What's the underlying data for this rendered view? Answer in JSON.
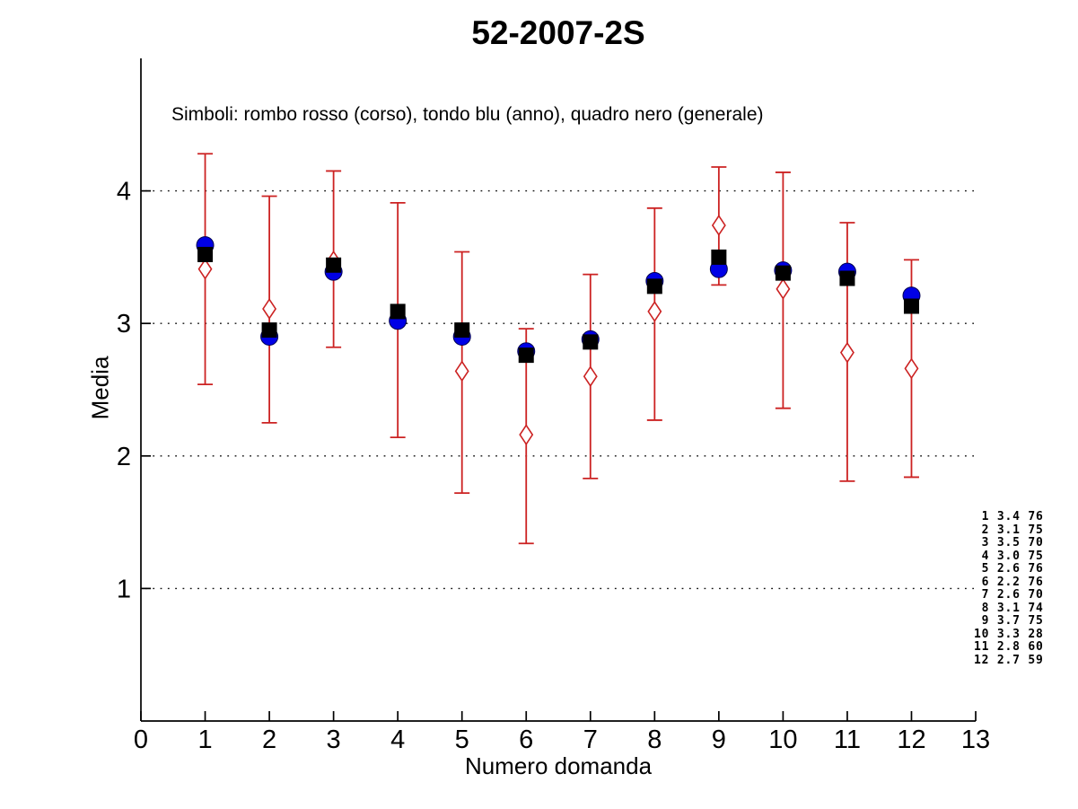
{
  "chart_data": {
    "type": "scatter",
    "title": "52-2007-2S",
    "subtitle": "Simboli: rombo rosso (corso), tondo blu (anno), quadro nero (generale)",
    "xlabel": "Numero domanda",
    "ylabel": "Media",
    "xlim": [
      0,
      13
    ],
    "ylim": [
      0,
      5
    ],
    "xticks": [
      0,
      1,
      2,
      3,
      4,
      5,
      6,
      7,
      8,
      9,
      10,
      11,
      12,
      13
    ],
    "yticks": [
      1,
      2,
      3,
      4
    ],
    "grid": "dotted horizontal lines at each y tick",
    "legend_position": "text line inside plot, top left",
    "x": [
      1,
      2,
      3,
      4,
      5,
      6,
      7,
      8,
      9,
      10,
      11,
      12
    ],
    "series": [
      {
        "name": "corso",
        "legend_label": "rombo rosso (corso)",
        "marker": "open-diamond",
        "color": "#cc2222",
        "values": [
          3.41,
          3.11,
          3.47,
          3.03,
          2.64,
          2.16,
          2.6,
          3.09,
          3.74,
          3.26,
          2.78,
          2.66
        ]
      },
      {
        "name": "anno",
        "legend_label": "tondo blu (anno)",
        "marker": "filled-circle",
        "color": "#0000e6",
        "values": [
          3.59,
          2.9,
          3.39,
          3.02,
          2.9,
          2.79,
          2.88,
          3.32,
          3.41,
          3.4,
          3.39,
          3.21
        ]
      },
      {
        "name": "generale",
        "legend_label": "quadro nero (generale)",
        "marker": "filled-square",
        "color": "#000000",
        "values": [
          3.52,
          2.95,
          3.44,
          3.09,
          2.95,
          2.76,
          2.86,
          3.28,
          3.5,
          3.38,
          3.34,
          3.13
        ]
      }
    ],
    "error_bars": {
      "attached_to": "corso",
      "color": "#cc2222",
      "low": [
        2.54,
        2.25,
        2.82,
        2.14,
        1.72,
        1.34,
        1.83,
        2.27,
        3.29,
        2.36,
        1.81,
        1.84
      ],
      "high": [
        4.28,
        3.96,
        4.15,
        3.91,
        3.54,
        2.96,
        3.37,
        3.87,
        4.18,
        4.14,
        3.76,
        3.48
      ]
    },
    "side_table": {
      "rows": [
        {
          "n": 1,
          "media": "3.4",
          "count": 76
        },
        {
          "n": 2,
          "media": "3.1",
          "count": 75
        },
        {
          "n": 3,
          "media": "3.5",
          "count": 70
        },
        {
          "n": 4,
          "media": "3.0",
          "count": 75
        },
        {
          "n": 5,
          "media": "2.6",
          "count": 76
        },
        {
          "n": 6,
          "media": "2.2",
          "count": 76
        },
        {
          "n": 7,
          "media": "2.6",
          "count": 70
        },
        {
          "n": 8,
          "media": "3.1",
          "count": 74
        },
        {
          "n": 9,
          "media": "3.7",
          "count": 75
        },
        {
          "n": 10,
          "media": "3.3",
          "count": 28
        },
        {
          "n": 11,
          "media": "2.8",
          "count": 60
        },
        {
          "n": 12,
          "media": "2.7",
          "count": 59
        }
      ]
    },
    "colors": {
      "axis": "#000000",
      "grid": "#111111",
      "red": "#cc2222",
      "blue": "#0000e6",
      "black": "#000000"
    }
  }
}
